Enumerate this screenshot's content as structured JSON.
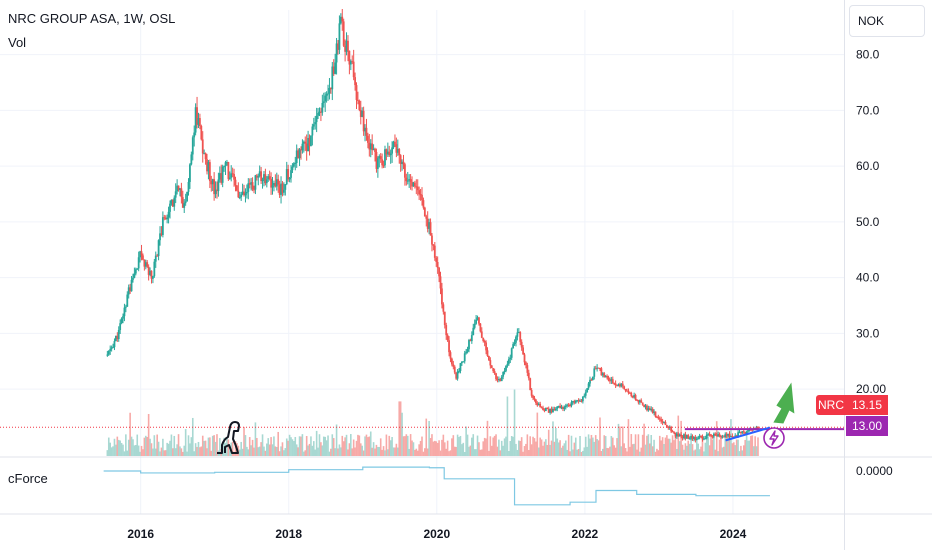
{
  "header": {
    "title": "NRC GROUP ASA, 1W, OSL",
    "volume_label": "Vol",
    "currency": "NOK"
  },
  "indicator": {
    "name": "cForce",
    "value_label": "0.0000"
  },
  "price_tags": {
    "symbol": "NRC",
    "last_price": "13.15",
    "level": "13.00"
  },
  "colors": {
    "up": "#26a69a",
    "down": "#ef5350",
    "indicator_line": "#7ec8e3",
    "support_line": "#9c27b0",
    "trend_line": "#2962ff",
    "arrow": "#4caf50"
  },
  "icons": [
    "dino-logo-icon",
    "lightning-icon"
  ],
  "chart_data": {
    "type": "candlestick",
    "title": "NRC GROUP ASA, 1W, OSL",
    "ylim": [
      8,
      88
    ],
    "y_ticks": [
      "20.00",
      "30.0",
      "40.0",
      "50.0",
      "60.0",
      "70.0",
      "80.0"
    ],
    "y_tick_values": [
      20,
      30,
      40,
      50,
      60,
      70,
      80
    ],
    "x_ticks": [
      "2016",
      "2018",
      "2020",
      "2022",
      "2024"
    ],
    "x_tick_values": [
      2016,
      2018,
      2020,
      2022,
      2024
    ],
    "xlim": [
      2014.1,
      2025.5
    ],
    "grid": true,
    "price_series": [
      [
        2015.55,
        26
      ],
      [
        2015.7,
        30
      ],
      [
        2015.85,
        38
      ],
      [
        2016.0,
        44
      ],
      [
        2016.15,
        40
      ],
      [
        2016.3,
        50
      ],
      [
        2016.5,
        56
      ],
      [
        2016.6,
        52
      ],
      [
        2016.75,
        70
      ],
      [
        2016.85,
        62
      ],
      [
        2017.0,
        56
      ],
      [
        2017.15,
        60
      ],
      [
        2017.35,
        54
      ],
      [
        2017.6,
        58
      ],
      [
        2017.9,
        56
      ],
      [
        2018.1,
        62
      ],
      [
        2018.3,
        65
      ],
      [
        2018.45,
        70
      ],
      [
        2018.58,
        76
      ],
      [
        2018.7,
        85
      ],
      [
        2018.85,
        78
      ],
      [
        2019.0,
        68
      ],
      [
        2019.2,
        60
      ],
      [
        2019.45,
        64
      ],
      [
        2019.6,
        58
      ],
      [
        2019.8,
        54
      ],
      [
        2019.95,
        46
      ],
      [
        2020.05,
        38
      ],
      [
        2020.15,
        28
      ],
      [
        2020.25,
        22
      ],
      [
        2020.4,
        27
      ],
      [
        2020.55,
        33
      ],
      [
        2020.7,
        25
      ],
      [
        2020.85,
        21
      ],
      [
        2021.1,
        30
      ],
      [
        2021.3,
        18
      ],
      [
        2021.5,
        16
      ],
      [
        2021.75,
        17
      ],
      [
        2021.95,
        18
      ],
      [
        2022.15,
        24
      ],
      [
        2022.3,
        22
      ],
      [
        2022.55,
        20
      ],
      [
        2022.8,
        17
      ],
      [
        2023.0,
        15
      ],
      [
        2023.2,
        12
      ],
      [
        2023.5,
        11
      ],
      [
        2023.75,
        12
      ],
      [
        2024.0,
        11.5
      ],
      [
        2024.2,
        12.5
      ],
      [
        2024.35,
        13.15
      ]
    ],
    "volume_spikes": [
      [
        2016.1,
        0.6
      ],
      [
        2017.55,
        0.48
      ],
      [
        2018.65,
        0.45
      ],
      [
        2019.1,
        0.35
      ],
      [
        2019.5,
        0.78
      ],
      [
        2019.9,
        0.5
      ],
      [
        2020.95,
        0.85
      ],
      [
        2021.05,
        0.95
      ],
      [
        2021.35,
        0.62
      ],
      [
        2021.6,
        0.4
      ],
      [
        2022.2,
        0.55
      ],
      [
        2022.9,
        0.3
      ]
    ],
    "indicator_series": [
      [
        2015.5,
        0.0
      ],
      [
        2016.0,
        -0.15
      ],
      [
        2017.0,
        -0.1
      ],
      [
        2018.0,
        0.1
      ],
      [
        2019.0,
        0.3
      ],
      [
        2019.9,
        0.25
      ],
      [
        2020.1,
        -0.6
      ],
      [
        2020.9,
        -0.6
      ],
      [
        2021.05,
        -2.6
      ],
      [
        2021.8,
        -2.4
      ],
      [
        2022.05,
        -2.4
      ],
      [
        2022.15,
        -1.5
      ],
      [
        2022.7,
        -1.8
      ],
      [
        2023.5,
        -1.9
      ],
      [
        2024.5,
        -1.9
      ]
    ],
    "support_level": 13.0,
    "last_price": 13.15
  }
}
